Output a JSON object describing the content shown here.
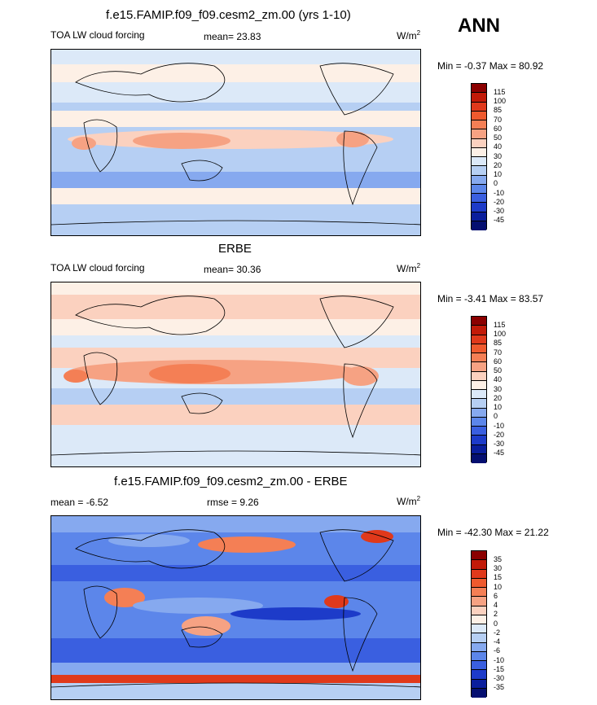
{
  "header": {
    "season": "ANN"
  },
  "panels": [
    {
      "title": "f.e15.FAMIP.f09_f09.cesm2_zm.00 (yrs 1-10)",
      "left_label": "TOA LW cloud forcing",
      "mid_label": "mean=  23.83",
      "units": "W/m",
      "units_sup": "2",
      "minmax": "Min =  -0.37 Max =  80.92",
      "colorbar_labels": [
        "115",
        "100",
        "85",
        "70",
        "60",
        "50",
        "40",
        "30",
        "20",
        "10",
        "0",
        "-10",
        "-20",
        "-30",
        "-45"
      ],
      "colors": [
        "#8b0000",
        "#c21a08",
        "#e0391b",
        "#ef5a2e",
        "#f47f55",
        "#f6a283",
        "#fbd1bf",
        "#fdf0e6",
        "#dce9f8",
        "#b6cff3",
        "#86a9ef",
        "#5c86ea",
        "#3a5fe0",
        "#1d3bc9",
        "#0a1e9c",
        "#050f70"
      ]
    },
    {
      "title": "ERBE",
      "left_label": "TOA LW cloud forcing",
      "mid_label": "mean=  30.36",
      "units": "W/m",
      "units_sup": "2",
      "minmax": "Min =  -3.41 Max =  83.57",
      "colorbar_labels": [
        "115",
        "100",
        "85",
        "70",
        "60",
        "50",
        "40",
        "30",
        "20",
        "10",
        "0",
        "-10",
        "-20",
        "-30",
        "-45"
      ],
      "colors": [
        "#8b0000",
        "#c21a08",
        "#e0391b",
        "#ef5a2e",
        "#f47f55",
        "#f6a283",
        "#fbd1bf",
        "#fdf0e6",
        "#dce9f8",
        "#b6cff3",
        "#86a9ef",
        "#5c86ea",
        "#3a5fe0",
        "#1d3bc9",
        "#0a1e9c",
        "#050f70"
      ]
    },
    {
      "title": "f.e15.FAMIP.f09_f09.cesm2_zm.00 - ERBE",
      "left_label": "mean =  -6.52",
      "mid_label": "rmse =   9.26",
      "units": "W/m",
      "units_sup": "2",
      "minmax": "Min = -42.30 Max =  21.22",
      "colorbar_labels": [
        "35",
        "30",
        "15",
        "10",
        "6",
        "4",
        "2",
        "0",
        "-2",
        "-4",
        "-6",
        "-10",
        "-15",
        "-30",
        "-35"
      ],
      "colors": [
        "#8b0000",
        "#c21a08",
        "#e0391b",
        "#ef5a2e",
        "#f47f55",
        "#f6a283",
        "#fbd1bf",
        "#fdf0e6",
        "#dce9f8",
        "#b6cff3",
        "#86a9ef",
        "#5c86ea",
        "#3a5fe0",
        "#1d3bc9",
        "#0a1e9c",
        "#050f70"
      ]
    }
  ]
}
